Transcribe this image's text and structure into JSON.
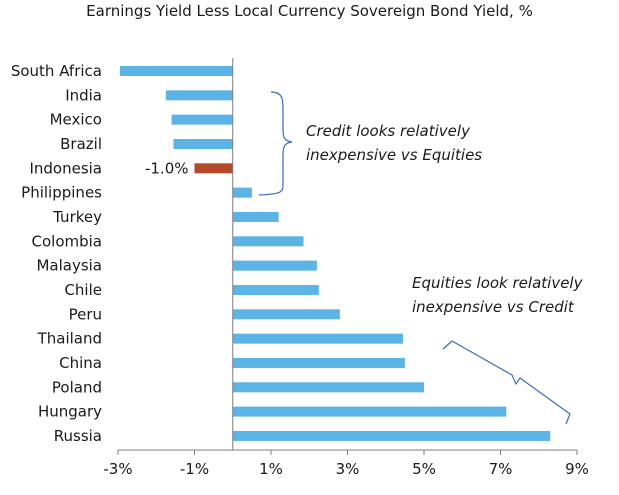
{
  "chart_data": {
    "type": "bar",
    "orientation": "horizontal",
    "title": "Earnings Yield Less Local Currency Sovereign Bond Yield, %",
    "categories": [
      "South Africa",
      "India",
      "Mexico",
      "Brazil",
      "Indonesia",
      "Philippines",
      "Turkey",
      "Colombia",
      "Malaysia",
      "Chile",
      "Peru",
      "Thailand",
      "China",
      "Poland",
      "Hungary",
      "Russia"
    ],
    "values": [
      -2.95,
      -1.75,
      -1.6,
      -1.55,
      -1.0,
      0.5,
      1.2,
      1.85,
      2.2,
      2.25,
      2.8,
      4.45,
      4.5,
      5.0,
      7.15,
      8.3
    ],
    "highlight": {
      "category": "Indonesia",
      "label": "-1.0%"
    },
    "colors": {
      "bar": "#5bb3e6",
      "highlight": "#b5492b",
      "bracket": "#3a6db5"
    },
    "xlim": [
      -3,
      9
    ],
    "x_ticks": [
      -3,
      -1,
      1,
      3,
      5,
      7,
      9
    ],
    "x_tick_labels": [
      "-3%",
      "-1%",
      "1%",
      "3%",
      "5%",
      "7%",
      "9%"
    ],
    "grid": false,
    "annotations": [
      {
        "lines": [
          "Credit looks relatively",
          "inexpensive vs Equities"
        ]
      },
      {
        "lines": [
          "Equities look relatively",
          "inexpensive vs Credit"
        ]
      }
    ]
  }
}
